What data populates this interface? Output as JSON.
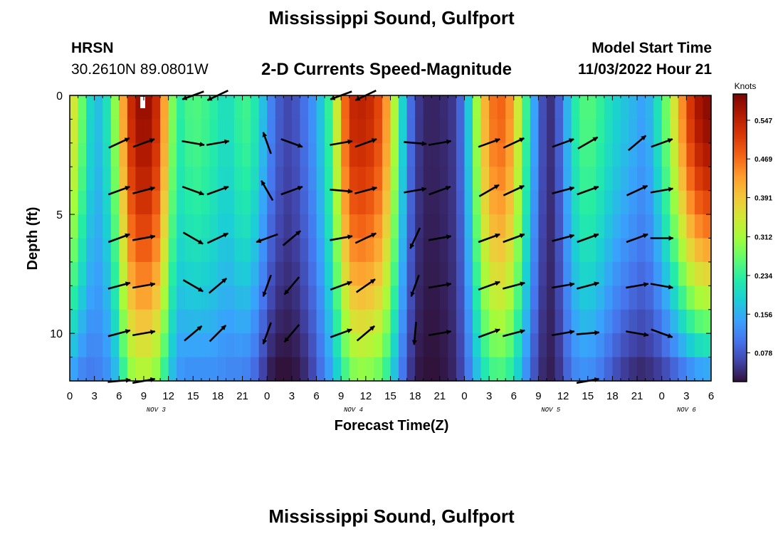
{
  "page": {
    "title": "Mississippi Sound, Gulfport",
    "station_id": "HRSN",
    "coordinates": "30.2610N  89.0801W",
    "product": "2-D Currents Speed-Magnitude",
    "model_start_label": "Model Start Time",
    "model_start_value": "11/03/2022 Hour 21",
    "footer_title": "Mississippi Sound, Gulfport"
  },
  "chart_data": {
    "type": "heatmap",
    "xlabel": "Forecast Time(Z)",
    "ylabel": "Depth (ft)",
    "x_tick_labels": [
      "0",
      "3",
      "6",
      "9",
      "12",
      "15",
      "18",
      "21",
      "0",
      "3",
      "6",
      "9",
      "12",
      "15",
      "18",
      "21",
      "0",
      "3",
      "6",
      "9",
      "12",
      "15",
      "18",
      "21",
      "0",
      "3",
      "6"
    ],
    "date_labels": [
      {
        "label": "NOV 3",
        "tick_index": 3.5
      },
      {
        "label": "NOV 4",
        "tick_index": 11.5
      },
      {
        "label": "NOV 5",
        "tick_index": 19.5
      },
      {
        "label": "NOV 6",
        "tick_index": 25
      }
    ],
    "y_ticks": [
      0,
      5,
      10
    ],
    "ylim": [
      0,
      12
    ],
    "y_reversed": true,
    "colorbar": {
      "label": "Knots",
      "ticks": [
        "0.547",
        "0.469",
        "0.391",
        "0.312",
        "0.234",
        "0.156",
        "0.078"
      ],
      "tick_values": [
        0.547,
        0.469,
        0.391,
        0.312,
        0.234,
        0.156,
        0.078
      ],
      "range": [
        0.02,
        0.6
      ],
      "colors": [
        "#30123b",
        "#4145ab",
        "#4675ed",
        "#39a2fc",
        "#1bcfd4",
        "#24eca6",
        "#61fc6c",
        "#a4fc3b",
        "#d1e834",
        "#f3c63a",
        "#fe9b2d",
        "#f36315",
        "#d93806",
        "#b11901",
        "#7a0402"
      ]
    },
    "hours": [
      0,
      1,
      2,
      3,
      4,
      5,
      6,
      7,
      8,
      9,
      10,
      11,
      12,
      13,
      14,
      15,
      16,
      17,
      18,
      19,
      20,
      21,
      22,
      23,
      24,
      25,
      26,
      27,
      28,
      29,
      30,
      31,
      32,
      33,
      34,
      35,
      36,
      37,
      38,
      39,
      40,
      41,
      42,
      43,
      44,
      45,
      46,
      47,
      48,
      49,
      50,
      51,
      52,
      53,
      54,
      55,
      56,
      57,
      58,
      59,
      60,
      61,
      62,
      63,
      64,
      65,
      66,
      67,
      68,
      69,
      70,
      71,
      72,
      73,
      74,
      75,
      76,
      77,
      78
    ],
    "surface_speed": [
      0.39,
      0.31,
      0.23,
      0.16,
      0.18,
      0.24,
      0.35,
      0.5,
      0.57,
      0.58,
      0.57,
      0.5,
      0.35,
      0.22,
      0.24,
      0.26,
      0.25,
      0.24,
      0.22,
      0.2,
      0.22,
      0.25,
      0.24,
      0.2,
      0.14,
      0.09,
      0.07,
      0.06,
      0.09,
      0.11,
      0.15,
      0.2,
      0.27,
      0.42,
      0.53,
      0.55,
      0.54,
      0.53,
      0.48,
      0.39,
      0.25,
      0.13,
      0.06,
      0.04,
      0.03,
      0.04,
      0.04,
      0.06,
      0.12,
      0.24,
      0.37,
      0.45,
      0.48,
      0.47,
      0.41,
      0.29,
      0.19,
      0.1,
      0.04,
      0.05,
      0.12,
      0.2,
      0.25,
      0.26,
      0.25,
      0.22,
      0.2,
      0.18,
      0.17,
      0.15,
      0.14,
      0.18,
      0.24,
      0.31,
      0.4,
      0.49,
      0.55,
      0.58,
      0.59
    ],
    "bottom_speed": [
      0.16,
      0.13,
      0.11,
      0.11,
      0.12,
      0.14,
      0.19,
      0.29,
      0.32,
      0.33,
      0.32,
      0.28,
      0.2,
      0.14,
      0.13,
      0.13,
      0.13,
      0.13,
      0.13,
      0.12,
      0.12,
      0.12,
      0.11,
      0.08,
      0.04,
      0.02,
      0.02,
      0.02,
      0.03,
      0.05,
      0.08,
      0.12,
      0.16,
      0.22,
      0.28,
      0.3,
      0.3,
      0.29,
      0.27,
      0.21,
      0.14,
      0.07,
      0.03,
      0.02,
      0.02,
      0.02,
      0.03,
      0.04,
      0.08,
      0.14,
      0.2,
      0.24,
      0.26,
      0.25,
      0.22,
      0.16,
      0.1,
      0.05,
      0.03,
      0.03,
      0.07,
      0.11,
      0.13,
      0.13,
      0.12,
      0.1,
      0.08,
      0.06,
      0.05,
      0.04,
      0.04,
      0.05,
      0.06,
      0.08,
      0.1,
      0.12,
      0.14,
      0.15,
      0.15
    ],
    "vectors": {
      "depths": [
        0,
        2,
        4,
        6,
        8,
        10,
        12
      ],
      "hours": [
        6,
        9,
        15,
        18,
        24,
        27,
        33,
        36,
        42,
        45,
        51,
        54,
        60,
        63,
        69,
        72,
        75
      ],
      "angles_deg": [
        [
          null,
          null,
          200,
          205,
          null,
          null,
          200,
          205,
          null,
          null,
          null,
          null,
          null,
          null,
          null,
          null,
          null
        ],
        [
          25,
          20,
          350,
          10,
          110,
          340,
          10,
          20,
          355,
          10,
          20,
          25,
          20,
          30,
          40,
          20,
          null
        ],
        [
          20,
          15,
          340,
          20,
          120,
          20,
          355,
          15,
          10,
          20,
          30,
          25,
          15,
          20,
          25,
          10,
          null
        ],
        [
          20,
          10,
          330,
          25,
          200,
          40,
          10,
          25,
          245,
          10,
          20,
          20,
          15,
          20,
          20,
          0,
          null
        ],
        [
          15,
          10,
          330,
          40,
          250,
          230,
          20,
          35,
          250,
          10,
          20,
          15,
          10,
          15,
          10,
          350,
          null
        ],
        [
          15,
          10,
          40,
          45,
          250,
          230,
          20,
          40,
          265,
          10,
          20,
          15,
          10,
          5,
          350,
          340,
          null
        ],
        [
          5,
          10,
          null,
          null,
          null,
          null,
          null,
          null,
          null,
          null,
          null,
          null,
          null,
          10,
          null,
          null,
          null
        ]
      ]
    }
  }
}
